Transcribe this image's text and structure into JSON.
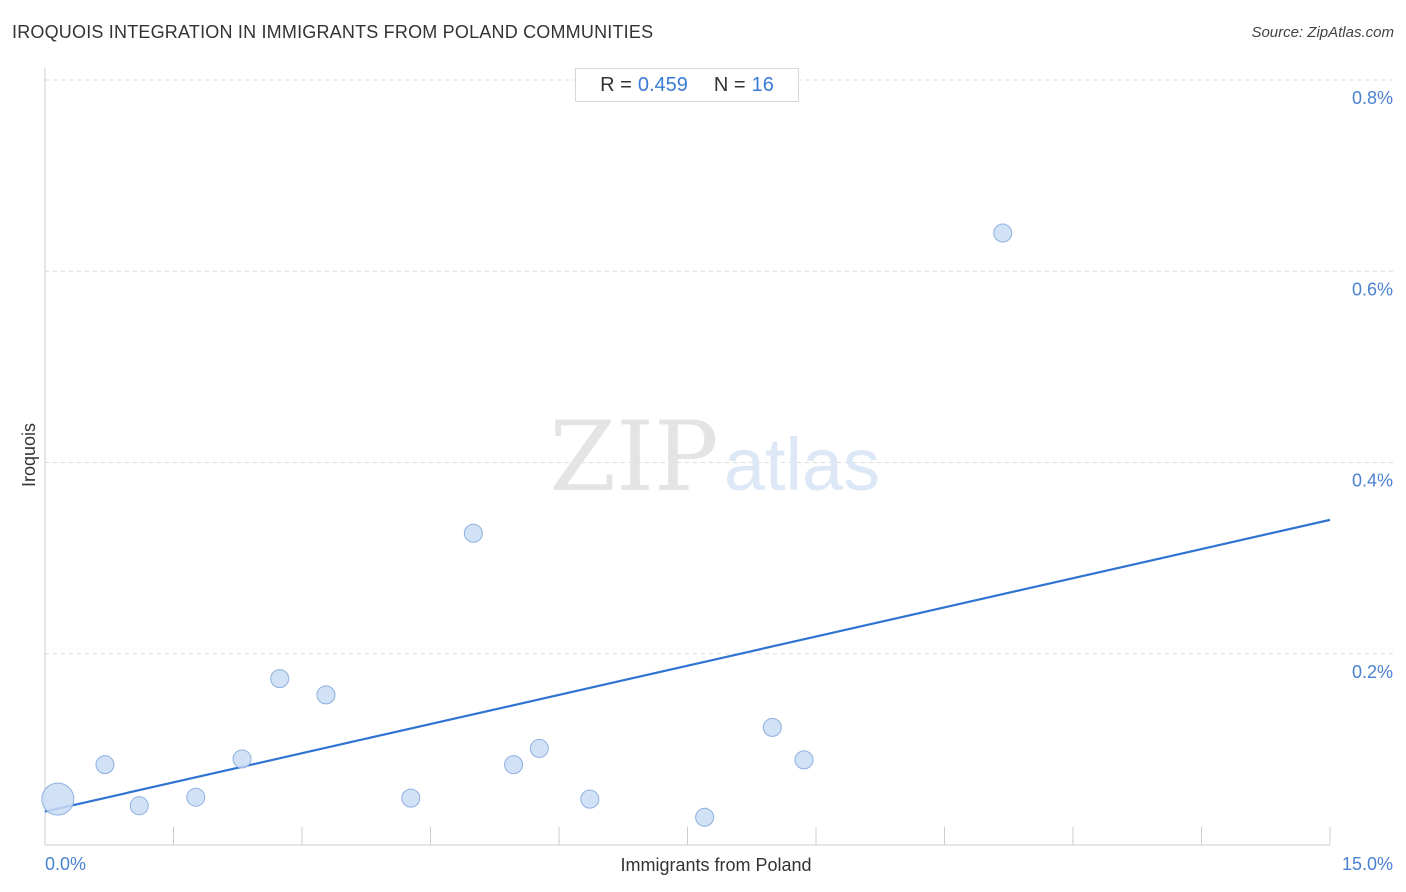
{
  "header": {
    "title": "IROQUOIS INTEGRATION IN IMMIGRANTS FROM POLAND COMMUNITIES",
    "source": "Source: ZipAtlas.com"
  },
  "stats": {
    "r_label": "R =",
    "r_value": "0.459",
    "n_label": "N =",
    "n_value": "16"
  },
  "watermark": {
    "zip": "ZIP",
    "atlas": "atlas"
  },
  "colors": {
    "point_fill": "#c9dcf5",
    "point_stroke": "#8fb0e0",
    "trend_line": "#2f74d0",
    "tick_label": "#4a82d0",
    "grid": "#dddddd"
  },
  "chart_data": {
    "type": "scatter",
    "title": "IROQUOIS INTEGRATION IN IMMIGRANTS FROM POLAND COMMUNITIES",
    "xlabel": "Immigrants from Poland",
    "ylabel": "Iroquois",
    "xlim": [
      0,
      15
    ],
    "ylim": [
      0,
      0.8
    ],
    "x_tick_labels": [
      {
        "value": 0,
        "label": "0.0%"
      },
      {
        "value": 15,
        "label": "15.0%"
      }
    ],
    "y_tick_labels": [
      {
        "value": 0.8,
        "label": "0.8%"
      },
      {
        "value": 0.6,
        "label": "0.6%"
      },
      {
        "value": 0.4,
        "label": "0.4%"
      },
      {
        "value": 0.2,
        "label": "0.2%"
      }
    ],
    "points": [
      {
        "x": 0.15,
        "y": 0.048,
        "weight": 3
      },
      {
        "x": 0.7,
        "y": 0.084,
        "weight": 1
      },
      {
        "x": 1.1,
        "y": 0.041,
        "weight": 1
      },
      {
        "x": 1.76,
        "y": 0.05,
        "weight": 1
      },
      {
        "x": 2.3,
        "y": 0.09,
        "weight": 1
      },
      {
        "x": 2.74,
        "y": 0.174,
        "weight": 1
      },
      {
        "x": 3.28,
        "y": 0.157,
        "weight": 1
      },
      {
        "x": 4.27,
        "y": 0.049,
        "weight": 1
      },
      {
        "x": 5.0,
        "y": 0.326,
        "weight": 1
      },
      {
        "x": 5.47,
        "y": 0.084,
        "weight": 1
      },
      {
        "x": 5.77,
        "y": 0.101,
        "weight": 1
      },
      {
        "x": 6.36,
        "y": 0.048,
        "weight": 1
      },
      {
        "x": 7.7,
        "y": 0.029,
        "weight": 1
      },
      {
        "x": 8.49,
        "y": 0.123,
        "weight": 1
      },
      {
        "x": 8.86,
        "y": 0.089,
        "weight": 1
      },
      {
        "x": 11.18,
        "y": 0.64,
        "weight": 1
      }
    ],
    "trendline": {
      "x": [
        0,
        15
      ],
      "y": [
        0.035,
        0.34
      ]
    },
    "grid": true
  }
}
